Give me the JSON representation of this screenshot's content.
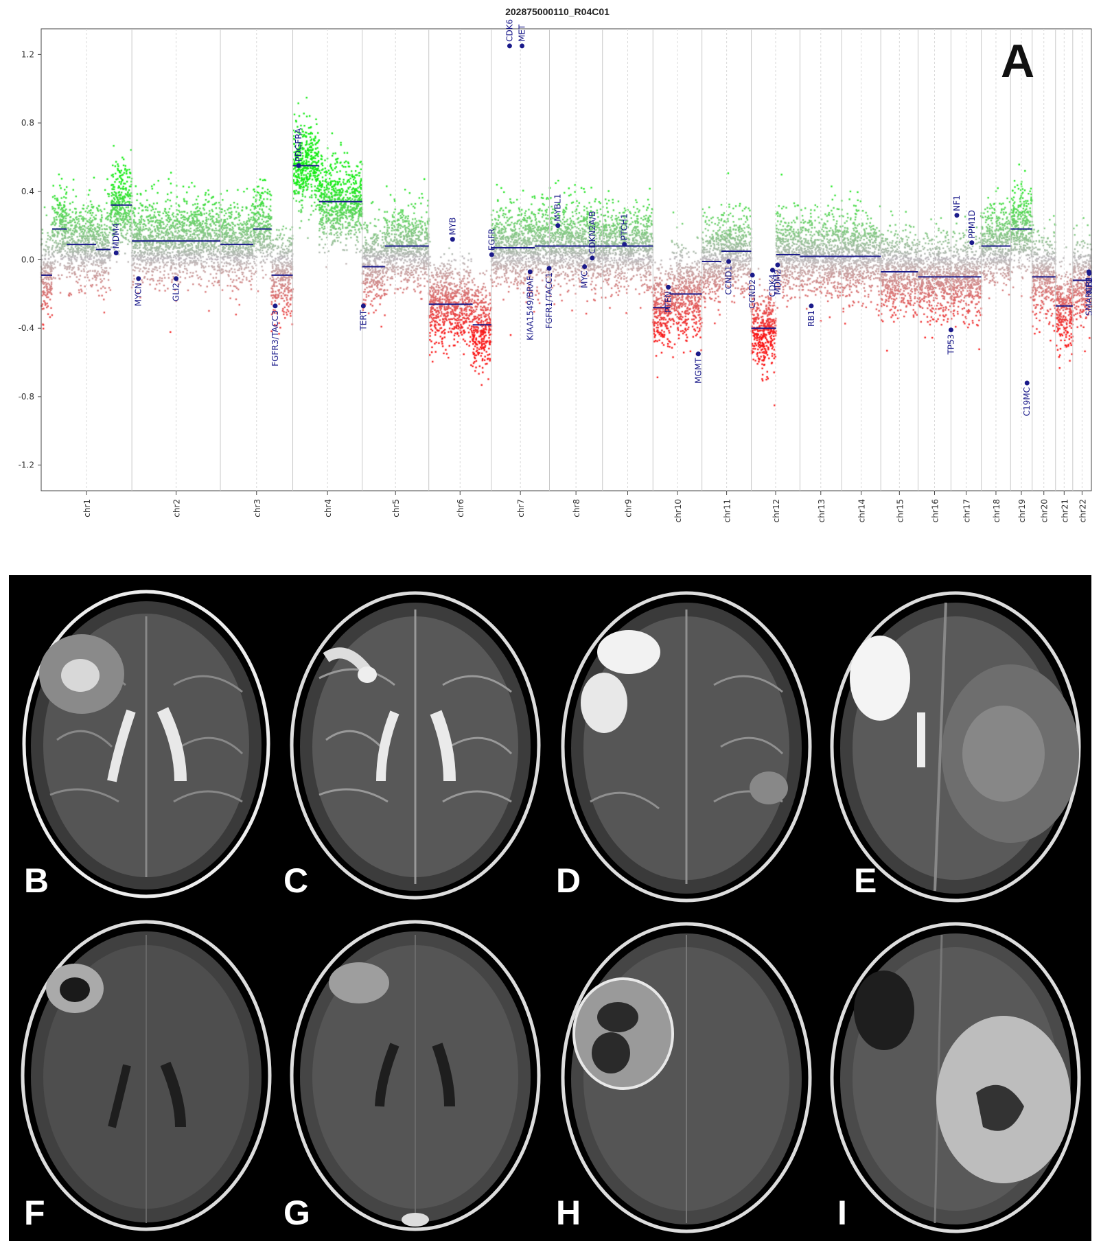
{
  "figure_a": {
    "panel_letter": "A",
    "title": "202875000110_R04C01"
  },
  "chart_data": {
    "type": "scatter",
    "title": "202875000110_R04C01",
    "xlabel": "",
    "ylabel": "",
    "ylim": [
      -1.35,
      1.35
    ],
    "yticks": [
      -1.2,
      -0.8,
      -0.4,
      0.0,
      0.4,
      0.8,
      1.2
    ],
    "ytick_labels": [
      "-1.2",
      "-0.8",
      "-0.4",
      "0.0",
      "0.4",
      "0.8",
      "1.2"
    ],
    "grid": false,
    "colors": {
      "gain": "#00cc00",
      "loss": "#ee1111",
      "neutral": "#b0b0b0",
      "segment": "#1a1a8a",
      "gene_label": "#1a1a8a"
    },
    "chromosomes": [
      {
        "name": "chr1",
        "start": 0,
        "end": 248
      },
      {
        "name": "chr2",
        "start": 248,
        "end": 490
      },
      {
        "name": "chr3",
        "start": 490,
        "end": 688
      },
      {
        "name": "chr4",
        "start": 688,
        "end": 878
      },
      {
        "name": "chr5",
        "start": 878,
        "end": 1060
      },
      {
        "name": "chr6",
        "start": 1060,
        "end": 1231
      },
      {
        "name": "chr7",
        "start": 1231,
        "end": 1390
      },
      {
        "name": "chr8",
        "start": 1390,
        "end": 1535
      },
      {
        "name": "chr9",
        "start": 1535,
        "end": 1673
      },
      {
        "name": "chr10",
        "start": 1673,
        "end": 1807
      },
      {
        "name": "chr11",
        "start": 1807,
        "end": 1942
      },
      {
        "name": "chr12",
        "start": 1942,
        "end": 2075
      },
      {
        "name": "chr13",
        "start": 2075,
        "end": 2189
      },
      {
        "name": "chr14",
        "start": 2189,
        "end": 2296
      },
      {
        "name": "chr15",
        "start": 2296,
        "end": 2398
      },
      {
        "name": "chr16",
        "start": 2398,
        "end": 2488
      },
      {
        "name": "chr17",
        "start": 2488,
        "end": 2571
      },
      {
        "name": "chr18",
        "start": 2571,
        "end": 2651
      },
      {
        "name": "chr19",
        "start": 2651,
        "end": 2710
      },
      {
        "name": "chr20",
        "start": 2710,
        "end": 2774
      },
      {
        "name": "chr21",
        "start": 2774,
        "end": 2821
      },
      {
        "name": "chr22",
        "start": 2821,
        "end": 2872
      }
    ],
    "segments": [
      {
        "start": 0,
        "end": 30,
        "value": -0.09
      },
      {
        "start": 30,
        "end": 70,
        "value": 0.18
      },
      {
        "start": 70,
        "end": 150,
        "value": 0.09
      },
      {
        "start": 150,
        "end": 190,
        "value": 0.06
      },
      {
        "start": 190,
        "end": 248,
        "value": 0.32
      },
      {
        "start": 248,
        "end": 490,
        "value": 0.11
      },
      {
        "start": 490,
        "end": 580,
        "value": 0.09
      },
      {
        "start": 580,
        "end": 630,
        "value": 0.18
      },
      {
        "start": 630,
        "end": 688,
        "value": -0.09
      },
      {
        "start": 688,
        "end": 760,
        "value": 0.55
      },
      {
        "start": 760,
        "end": 878,
        "value": 0.34
      },
      {
        "start": 878,
        "end": 940,
        "value": -0.04
      },
      {
        "start": 940,
        "end": 1060,
        "value": 0.08
      },
      {
        "start": 1060,
        "end": 1180,
        "value": -0.26
      },
      {
        "start": 1180,
        "end": 1231,
        "value": -0.38
      },
      {
        "start": 1231,
        "end": 1350,
        "value": 0.07
      },
      {
        "start": 1350,
        "end": 1390,
        "value": 0.08
      },
      {
        "start": 1390,
        "end": 1440,
        "value": 0.08
      },
      {
        "start": 1440,
        "end": 1535,
        "value": 0.08
      },
      {
        "start": 1535,
        "end": 1673,
        "value": 0.08
      },
      {
        "start": 1673,
        "end": 1720,
        "value": -0.28
      },
      {
        "start": 1720,
        "end": 1807,
        "value": -0.2
      },
      {
        "start": 1807,
        "end": 1860,
        "value": -0.01
      },
      {
        "start": 1860,
        "end": 1942,
        "value": 0.05
      },
      {
        "start": 1942,
        "end": 2010,
        "value": -0.4
      },
      {
        "start": 2010,
        "end": 2075,
        "value": 0.03
      },
      {
        "start": 2075,
        "end": 2189,
        "value": 0.02
      },
      {
        "start": 2189,
        "end": 2296,
        "value": 0.02
      },
      {
        "start": 2296,
        "end": 2398,
        "value": -0.07
      },
      {
        "start": 2398,
        "end": 2488,
        "value": -0.1
      },
      {
        "start": 2488,
        "end": 2571,
        "value": -0.1
      },
      {
        "start": 2571,
        "end": 2651,
        "value": 0.08
      },
      {
        "start": 2651,
        "end": 2710,
        "value": 0.18
      },
      {
        "start": 2710,
        "end": 2774,
        "value": -0.1
      },
      {
        "start": 2774,
        "end": 2821,
        "value": -0.27
      },
      {
        "start": 2821,
        "end": 2872,
        "value": -0.12
      }
    ],
    "genes": [
      {
        "name": "MDM4",
        "x": 205,
        "y": 0.04
      },
      {
        "name": "MYCN",
        "x": 266,
        "y": -0.11
      },
      {
        "name": "GLI2",
        "x": 369,
        "y": -0.11
      },
      {
        "name": "FGFR3/TACC3",
        "x": 640,
        "y": -0.27
      },
      {
        "name": "PDGFRA",
        "x": 704,
        "y": 0.55
      },
      {
        "name": "TERT",
        "x": 881,
        "y": -0.27
      },
      {
        "name": "MYB",
        "x": 1125,
        "y": 0.12
      },
      {
        "name": "EGFR",
        "x": 1232,
        "y": 0.03
      },
      {
        "name": "CDK6",
        "x": 1281,
        "y": 1.25
      },
      {
        "name": "MET",
        "x": 1315,
        "y": 1.25
      },
      {
        "name": "KIAA1549/BRAF",
        "x": 1337,
        "y": -0.07
      },
      {
        "name": "FGFR1/TACC1",
        "x": 1389,
        "y": -0.05
      },
      {
        "name": "MYBL1",
        "x": 1413,
        "y": 0.2
      },
      {
        "name": "MYC",
        "x": 1486,
        "y": -0.04
      },
      {
        "name": "CDKN2A/B",
        "x": 1507,
        "y": 0.01
      },
      {
        "name": "PTCH1",
        "x": 1595,
        "y": 0.09
      },
      {
        "name": "PTEN",
        "x": 1715,
        "y": -0.16
      },
      {
        "name": "MGMT",
        "x": 1797,
        "y": -0.55
      },
      {
        "name": "CCND1",
        "x": 1880,
        "y": -0.01
      },
      {
        "name": "CCND2",
        "x": 1945,
        "y": -0.09
      },
      {
        "name": "CDK4",
        "x": 2000,
        "y": -0.06
      },
      {
        "name": "MDM2",
        "x": 2014,
        "y": -0.03
      },
      {
        "name": "RB1",
        "x": 2106,
        "y": -0.27
      },
      {
        "name": "TP53",
        "x": 2488,
        "y": -0.41
      },
      {
        "name": "NF1",
        "x": 2504,
        "y": 0.26
      },
      {
        "name": "PPM1D",
        "x": 2545,
        "y": 0.1
      },
      {
        "name": "C19MC",
        "x": 2696,
        "y": -0.72
      },
      {
        "name": "SMARCB1",
        "x": 2865,
        "y": -0.07
      },
      {
        "name": "NF2",
        "x": 2866,
        "y": -0.08
      }
    ]
  },
  "mri_panels": [
    {
      "letter": "B"
    },
    {
      "letter": "C"
    },
    {
      "letter": "D"
    },
    {
      "letter": "E"
    },
    {
      "letter": "F"
    },
    {
      "letter": "G"
    },
    {
      "letter": "H"
    },
    {
      "letter": "I"
    }
  ]
}
